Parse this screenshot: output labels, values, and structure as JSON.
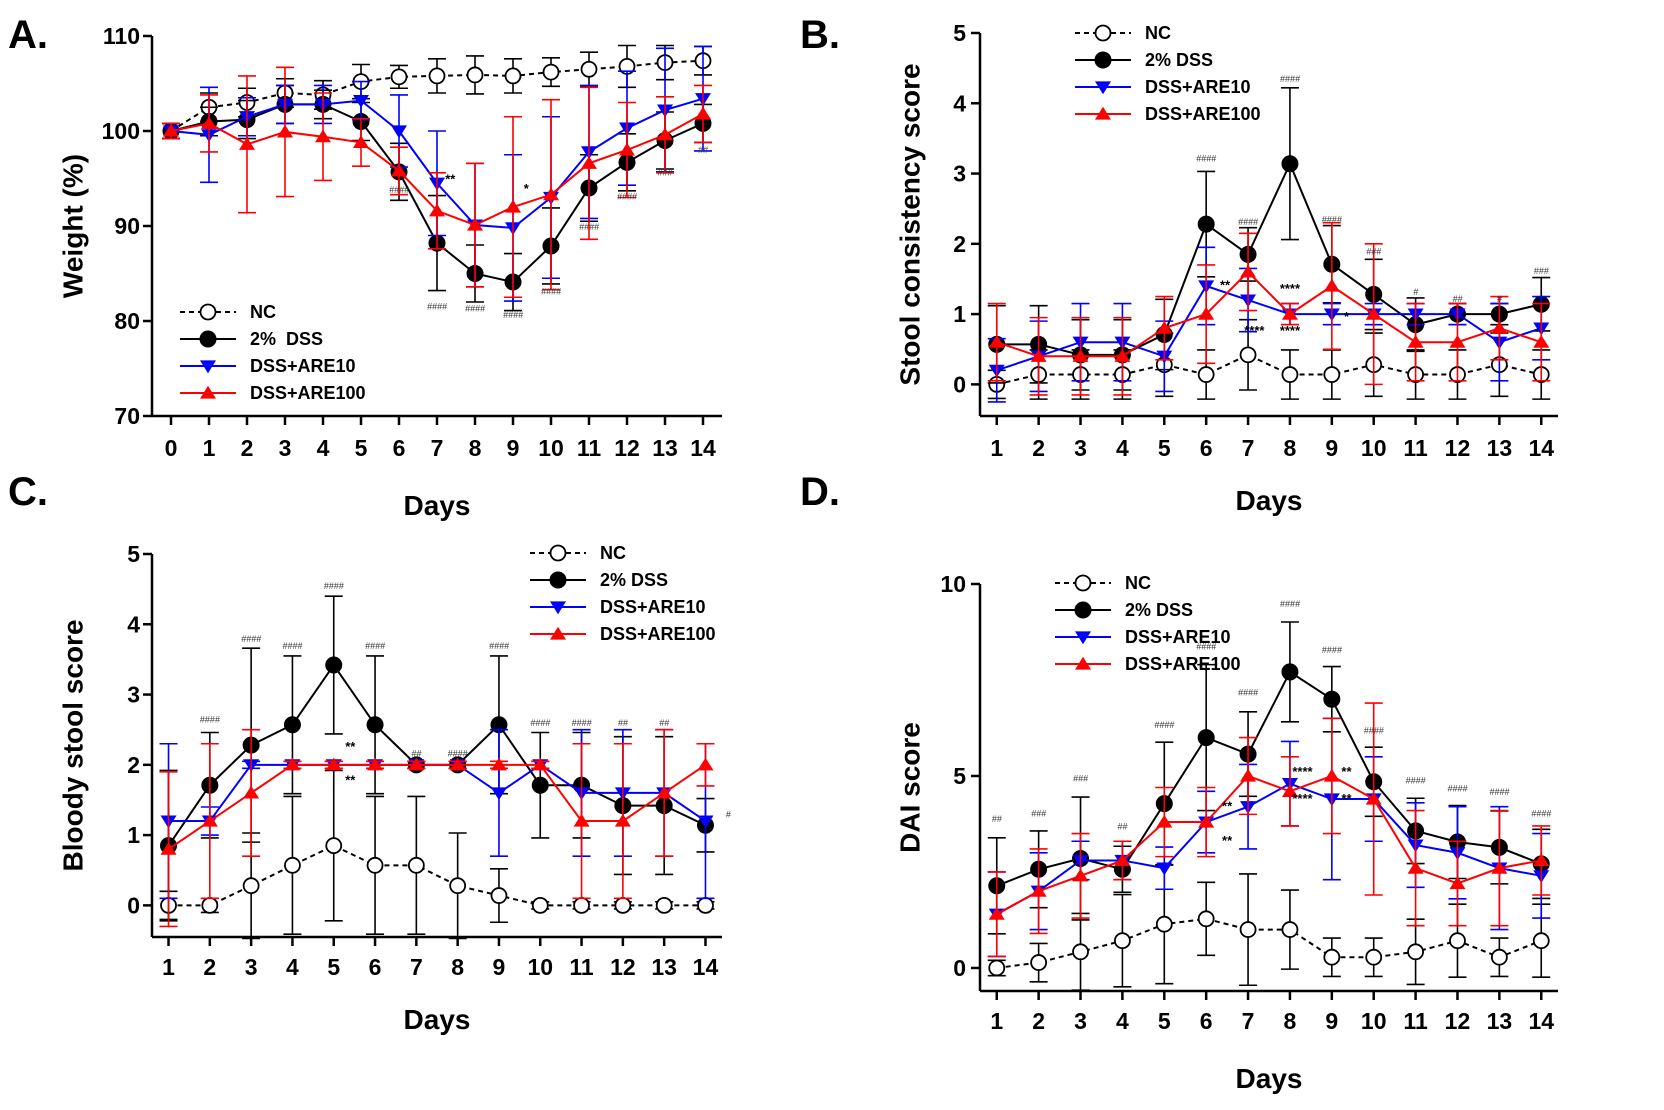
{
  "colors": {
    "NC": "#000000",
    "DSS": "#000000",
    "ARE10": "#0000ff",
    "ARE100": "#ff0000"
  },
  "chart_data": [
    {
      "type": "line",
      "panel": "A.",
      "xlabel": "",
      "ylabel": "Weight (%)",
      "x": [
        0,
        1,
        2,
        3,
        4,
        5,
        6,
        7,
        8,
        9,
        10,
        11,
        12,
        13,
        14
      ],
      "ylim": [
        70,
        110
      ],
      "yticks": [
        70,
        80,
        90,
        100,
        110
      ],
      "legend_position": "bottom-left",
      "series": [
        {
          "key": "NC",
          "name": "NC",
          "marker": "open-circle",
          "dashed": true,
          "values": [
            100,
            102.5,
            103,
            104,
            103.8,
            105.2,
            105.7,
            105.8,
            105.9,
            105.8,
            106.2,
            106.5,
            106.8,
            107.2,
            107.4
          ],
          "errors": [
            0.8,
            1.5,
            1.5,
            1.5,
            1.5,
            1.8,
            1.2,
            1.8,
            2,
            1.8,
            1.5,
            1.8,
            2.2,
            1.8,
            1.5
          ]
        },
        {
          "key": "DSS",
          "name": "2%  DSS",
          "marker": "filled-circle",
          "values": [
            100,
            101,
            101.2,
            102.8,
            102.8,
            101,
            95.7,
            88.2,
            85,
            84.1,
            87.9,
            94,
            96.7,
            99,
            100.8
          ],
          "errors": [
            0.8,
            1.5,
            2,
            2,
            1.5,
            2,
            3,
            5,
            3,
            3,
            4,
            3.5,
            3,
            3,
            2
          ]
        },
        {
          "key": "ARE10",
          "name": "DSS+ARE10",
          "marker": "down-triangle",
          "values": [
            100,
            99.6,
            101.5,
            102.8,
            102.8,
            103.2,
            100,
            94.5,
            90.1,
            89.8,
            93,
            97.8,
            100.3,
            102.2,
            103.4
          ],
          "errors": [
            0.8,
            5,
            2,
            2,
            2,
            2,
            3.8,
            5.5,
            6.5,
            7.7,
            8.5,
            7,
            6,
            6.5,
            5.5
          ]
        },
        {
          "key": "ARE100",
          "name": "DSS+ARE100",
          "marker": "up-triangle",
          "values": [
            100,
            100.8,
            98.6,
            99.9,
            99.4,
            98.8,
            95.8,
            91.6,
            90.1,
            92,
            93.3,
            96.6,
            98,
            99.6,
            101.8
          ],
          "errors": [
            0.8,
            3,
            7.2,
            6.8,
            4.6,
            2.5,
            2.5,
            4,
            6.5,
            9.5,
            10,
            8,
            5,
            4,
            3
          ]
        }
      ],
      "annotations": [
        {
          "x": 6,
          "y": 93.5,
          "text": "####"
        },
        {
          "x": 7,
          "y": 81.2,
          "text": "####"
        },
        {
          "x": 8,
          "y": 81.0,
          "text": "####"
        },
        {
          "x": 9,
          "y": 80.3,
          "text": "####"
        },
        {
          "x": 10,
          "y": 82.8,
          "text": "####"
        },
        {
          "x": 11,
          "y": 89.6,
          "text": "####"
        },
        {
          "x": 12,
          "y": 92.8,
          "text": "####"
        },
        {
          "x": 13,
          "y": 95.3,
          "text": "###"
        },
        {
          "x": 14,
          "y": 97.7,
          "text": "##"
        },
        {
          "x": 7.35,
          "y": 94.5,
          "text": "**"
        },
        {
          "x": 9.35,
          "y": 93.5,
          "text": "*"
        }
      ]
    },
    {
      "type": "line",
      "panel": "B.",
      "xlabel": "Days",
      "ylabel": "Stool consistency score",
      "x": [
        1,
        2,
        3,
        4,
        5,
        6,
        7,
        8,
        9,
        10,
        11,
        12,
        13,
        14
      ],
      "ylim": [
        -0.45,
        5
      ],
      "yticks": [
        0,
        1,
        2,
        3,
        4,
        5
      ],
      "legend_position": "top-left",
      "series": [
        {
          "key": "NC",
          "name": "NC",
          "marker": "open-circle",
          "dashed": true,
          "values": [
            0,
            0.14,
            0.14,
            0.14,
            0.28,
            0.14,
            0.42,
            0.14,
            0.14,
            0.28,
            0.14,
            0.14,
            0.28,
            0.14
          ],
          "errors": [
            0.2,
            0.35,
            0.35,
            0.35,
            0.45,
            0.35,
            0.5,
            0.35,
            0.35,
            0.45,
            0.35,
            0.35,
            0.45,
            0.35
          ]
        },
        {
          "key": "DSS",
          "name": "2% DSS",
          "marker": "filled-circle",
          "values": [
            0.57,
            0.57,
            0.42,
            0.42,
            0.71,
            2.28,
            1.85,
            3.14,
            1.71,
            1.28,
            0.85,
            1,
            1,
            1.14
          ],
          "errors": [
            0.55,
            0.55,
            0.5,
            0.5,
            0.5,
            0.75,
            0.38,
            1.08,
            0.55,
            0.5,
            0.38,
            0.15,
            0.15,
            0.38
          ]
        },
        {
          "key": "ARE10",
          "name": "DSS+ARE10",
          "marker": "down-triangle",
          "values": [
            0.2,
            0.4,
            0.6,
            0.6,
            0.4,
            1.4,
            1.2,
            1,
            1,
            1,
            1,
            1,
            0.6,
            0.8
          ],
          "errors": [
            0.45,
            0.5,
            0.55,
            0.55,
            0.5,
            0.55,
            0.45,
            0.15,
            0.15,
            0.15,
            0.15,
            0.15,
            0.55,
            0.45
          ]
        },
        {
          "key": "ARE100",
          "name": "DSS+ARE100",
          "marker": "up-triangle",
          "values": [
            0.6,
            0.4,
            0.4,
            0.4,
            0.8,
            1,
            1.6,
            1,
            1.4,
            1,
            0.6,
            0.6,
            0.8,
            0.6
          ],
          "errors": [
            0.55,
            0.55,
            0.55,
            0.55,
            0.45,
            0.7,
            0.55,
            0.15,
            0.9,
            1,
            0.55,
            0.55,
            0.45,
            0.55
          ]
        }
      ],
      "annotations": [
        {
          "x": 6,
          "y": 3.17,
          "text": "####"
        },
        {
          "x": 7,
          "y": 2.27,
          "text": "####"
        },
        {
          "x": 8,
          "y": 4.3,
          "text": "####"
        },
        {
          "x": 9,
          "y": 2.3,
          "text": "####"
        },
        {
          "x": 10,
          "y": 1.85,
          "text": "###"
        },
        {
          "x": 11,
          "y": 1.27,
          "text": "#"
        },
        {
          "x": 12,
          "y": 1.17,
          "text": "##"
        },
        {
          "x": 13,
          "y": 1.17,
          "text": "#"
        },
        {
          "x": 14,
          "y": 1.57,
          "text": "###"
        },
        {
          "x": 6.45,
          "y": 1.35,
          "text": "**"
        },
        {
          "x": 7.15,
          "y": 0.7,
          "text": "****"
        },
        {
          "x": 8,
          "y": 1.3,
          "text": "****"
        },
        {
          "x": 8,
          "y": 0.7,
          "text": "****"
        },
        {
          "x": 9.35,
          "y": 0.9,
          "text": "*"
        }
      ]
    },
    {
      "type": "line",
      "panel": "C.",
      "xlabel": "Days",
      "ylabel": "Bloody stool score",
      "x": [
        1,
        2,
        3,
        4,
        5,
        6,
        7,
        8,
        9,
        10,
        11,
        12,
        13,
        14
      ],
      "ylim": [
        -0.45,
        5
      ],
      "yticks": [
        0,
        1,
        2,
        3,
        4,
        5
      ],
      "legend_position": "top-right",
      "series": [
        {
          "key": "NC",
          "name": "NC",
          "marker": "open-circle",
          "dashed": true,
          "values": [
            0,
            0,
            0.28,
            0.57,
            0.85,
            0.57,
            0.57,
            0.28,
            0.14,
            0,
            0,
            0,
            0,
            0
          ],
          "errors": [
            0.2,
            0.1,
            0.75,
            0.98,
            1.07,
            0.98,
            0.98,
            0.75,
            0.38,
            0.05,
            0.05,
            0.05,
            0.05,
            0.05
          ]
        },
        {
          "key": "DSS",
          "name": "2% DSS",
          "marker": "filled-circle",
          "values": [
            0.85,
            1.71,
            2.28,
            2.57,
            3.42,
            2.57,
            2,
            2,
            2.57,
            1.71,
            1.71,
            1.42,
            1.42,
            1.14
          ],
          "errors": [
            1.07,
            0.75,
            1.38,
            0.98,
            0.98,
            0.98,
            0.05,
            0.05,
            0.98,
            0.75,
            0.75,
            0.98,
            0.98,
            0.38
          ]
        },
        {
          "key": "ARE10",
          "name": "DSS+ARE10",
          "marker": "down-triangle",
          "values": [
            1.2,
            1.2,
            2,
            2,
            2,
            2,
            2,
            2,
            1.6,
            2,
            1.6,
            1.6,
            1.6,
            1.2
          ],
          "errors": [
            1.1,
            0.2,
            0.05,
            0.05,
            0.05,
            0.05,
            0.05,
            0.05,
            0.9,
            0.05,
            0.9,
            0.9,
            0.9,
            1.1
          ]
        },
        {
          "key": "ARE100",
          "name": "DSS+ARE100",
          "marker": "up-triangle",
          "values": [
            0.8,
            1.2,
            1.6,
            2,
            2,
            2,
            2,
            2,
            2,
            2,
            1.2,
            1.2,
            1.6,
            2
          ],
          "errors": [
            1.1,
            1.1,
            0.9,
            0.05,
            0.05,
            0.05,
            0.05,
            0.05,
            0.05,
            0.05,
            1.1,
            1.1,
            0.9,
            0.3
          ]
        }
      ],
      "annotations": [
        {
          "x": 2,
          "y": 2.6,
          "text": "####"
        },
        {
          "x": 3,
          "y": 3.75,
          "text": "####"
        },
        {
          "x": 4,
          "y": 3.65,
          "text": "####"
        },
        {
          "x": 5,
          "y": 4.5,
          "text": "####"
        },
        {
          "x": 6,
          "y": 3.65,
          "text": "####"
        },
        {
          "x": 7,
          "y": 2.12,
          "text": "##"
        },
        {
          "x": 8,
          "y": 2.12,
          "text": "####"
        },
        {
          "x": 9,
          "y": 3.65,
          "text": "####"
        },
        {
          "x": 10,
          "y": 2.55,
          "text": "####"
        },
        {
          "x": 11,
          "y": 2.55,
          "text": "####"
        },
        {
          "x": 12,
          "y": 2.55,
          "text": "##"
        },
        {
          "x": 13,
          "y": 2.55,
          "text": "##"
        },
        {
          "x": 14.55,
          "y": 1.25,
          "text": "#"
        },
        {
          "x": 5.4,
          "y": 2.2,
          "text": "**"
        },
        {
          "x": 5.4,
          "y": 1.72,
          "text": "**"
        }
      ]
    },
    {
      "type": "line",
      "panel": "D.",
      "xlabel": "Days",
      "ylabel": "DAI score",
      "x": [
        1,
        2,
        3,
        4,
        5,
        6,
        7,
        8,
        9,
        10,
        11,
        12,
        13,
        14
      ],
      "ylim": [
        -0.6,
        10
      ],
      "yticks": [
        0,
        5,
        10
      ],
      "legend_position": "top-left",
      "series": [
        {
          "key": "NC",
          "name": "NC",
          "marker": "open-circle",
          "dashed": true,
          "values": [
            0,
            0.14,
            0.42,
            0.71,
            1.14,
            1.28,
            1,
            1,
            0.28,
            0.28,
            0.42,
            0.71,
            0.28,
            0.71
          ],
          "errors": [
            0.2,
            0.5,
            1,
            1.2,
            1.55,
            0.95,
            1.45,
            1.03,
            0.5,
            0.5,
            0.85,
            0.95,
            0.5,
            0.95
          ]
        },
        {
          "key": "DSS",
          "name": "2% DSS",
          "marker": "filled-circle",
          "values": [
            2.14,
            2.57,
            2.85,
            2.57,
            4.28,
            6,
            5.57,
            7.71,
            7,
            4.85,
            3.57,
            3.28,
            3.14,
            2.71
          ],
          "errors": [
            1.25,
            1,
            1.6,
            0.6,
            1.6,
            1.9,
            1.1,
            1.3,
            0.85,
            0.9,
            0.85,
            0.95,
            0.95,
            0.9
          ]
        },
        {
          "key": "ARE10",
          "name": "DSS+ARE10",
          "marker": "down-triangle",
          "values": [
            1.4,
            2,
            2.8,
            2.8,
            2.6,
            3.8,
            4.2,
            4.8,
            4.4,
            4.4,
            3.2,
            3,
            2.6,
            2.4
          ],
          "errors": [
            1.1,
            1,
            0.5,
            0.5,
            0.55,
            0.8,
            1.1,
            1.1,
            2.1,
            1.1,
            1.1,
            1.2,
            1.6,
            1.1
          ]
        },
        {
          "key": "ARE100",
          "name": "DSS+ARE100",
          "marker": "up-triangle",
          "values": [
            1.4,
            2,
            2.4,
            2.8,
            3.8,
            3.8,
            5,
            4.6,
            5,
            4.4,
            2.6,
            2.2,
            2.6,
            2.8
          ],
          "errors": [
            1.1,
            1.1,
            1.1,
            0.5,
            0.9,
            0.9,
            1,
            0.9,
            1.5,
            2.5,
            1.5,
            1.1,
            1.5,
            0.9
          ]
        }
      ],
      "annotations": [
        {
          "x": 1,
          "y": 3.8,
          "text": "##"
        },
        {
          "x": 2,
          "y": 3.95,
          "text": "###"
        },
        {
          "x": 3,
          "y": 4.85,
          "text": "###"
        },
        {
          "x": 4,
          "y": 3.6,
          "text": "##"
        },
        {
          "x": 5,
          "y": 6.25,
          "text": "####"
        },
        {
          "x": 6,
          "y": 8.3,
          "text": "####"
        },
        {
          "x": 7,
          "y": 7.1,
          "text": "####"
        },
        {
          "x": 8,
          "y": 9.4,
          "text": "####"
        },
        {
          "x": 9,
          "y": 8.2,
          "text": "####"
        },
        {
          "x": 10,
          "y": 6.1,
          "text": "####"
        },
        {
          "x": 11,
          "y": 4.8,
          "text": "####"
        },
        {
          "x": 12,
          "y": 4.6,
          "text": "####"
        },
        {
          "x": 13,
          "y": 4.5,
          "text": "####"
        },
        {
          "x": 14,
          "y": 3.95,
          "text": "####"
        },
        {
          "x": 6.5,
          "y": 4.1,
          "text": "**"
        },
        {
          "x": 6.5,
          "y": 3.2,
          "text": "**"
        },
        {
          "x": 8.3,
          "y": 5.0,
          "text": "****"
        },
        {
          "x": 8.3,
          "y": 4.3,
          "text": "****"
        },
        {
          "x": 9.35,
          "y": 5.0,
          "text": "**"
        },
        {
          "x": 9.35,
          "y": 4.3,
          "text": "**"
        }
      ]
    }
  ]
}
